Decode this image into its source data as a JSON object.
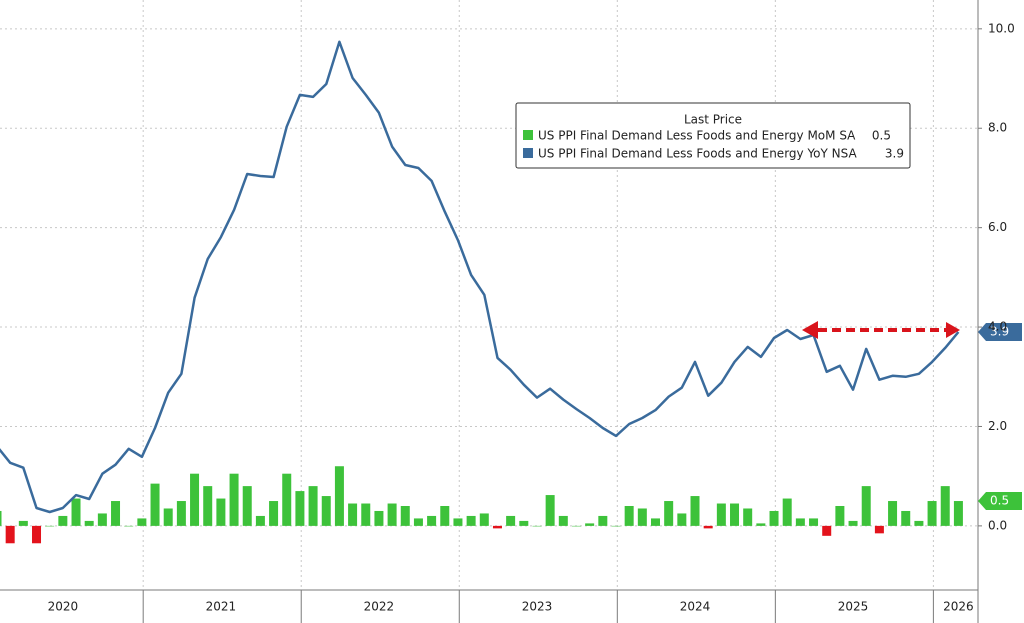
{
  "chart_data": {
    "type": "combo",
    "legend_title": "Last Price",
    "categories": [
      null,
      null,
      null,
      null,
      null,
      "2020",
      null,
      null,
      null,
      null,
      null,
      null,
      null,
      null,
      null,
      null,
      null,
      "2021",
      null,
      null,
      null,
      null,
      null,
      null,
      null,
      null,
      null,
      null,
      null,
      "2022",
      null,
      null,
      null,
      null,
      null,
      null,
      null,
      null,
      null,
      null,
      null,
      "2023",
      null,
      null,
      null,
      null,
      null,
      null,
      null,
      null,
      null,
      null,
      null,
      "2024",
      null,
      null,
      null,
      null,
      null,
      null,
      null,
      null,
      null,
      null,
      null,
      "2025",
      null,
      null,
      null,
      null,
      null,
      null,
      null,
      "2026"
    ],
    "series": [
      {
        "name": "US PPI Final Demand Less Foods and Energy MoM SA",
        "type": "bar",
        "color": "#3dc23a",
        "negative_color": "#e3131c",
        "values": [
          0.3,
          -0.35,
          0.1,
          -0.35,
          0.0,
          0.2,
          0.55,
          0.1,
          0.25,
          0.5,
          0.0,
          0.15,
          0.85,
          0.35,
          0.5,
          1.05,
          0.8,
          0.55,
          1.05,
          0.8,
          0.2,
          0.5,
          1.05,
          0.7,
          0.8,
          0.6,
          1.2,
          0.45,
          0.45,
          0.3,
          0.45,
          0.4,
          0.15,
          0.2,
          0.4,
          0.15,
          0.2,
          0.25,
          -0.05,
          0.2,
          0.1,
          0.0,
          0.62,
          0.2,
          0.0,
          0.05,
          0.2,
          0.0,
          0.4,
          0.35,
          0.15,
          0.5,
          0.25,
          0.6,
          -0.05,
          0.45,
          0.45,
          0.35,
          0.05,
          0.3,
          0.55,
          0.15,
          0.15,
          -0.2,
          0.4,
          0.1,
          0.8,
          -0.15,
          0.5,
          0.3,
          0.1,
          0.5,
          0.8,
          0.5
        ]
      },
      {
        "name": "US PPI Final Demand Less Foods and Energy YoY NSA",
        "type": "line",
        "color": "#3a6b9c",
        "values": [
          1.6,
          1.27,
          1.17,
          0.36,
          0.28,
          0.36,
          0.62,
          0.54,
          1.05,
          1.23,
          1.55,
          1.39,
          1.97,
          2.68,
          3.06,
          4.59,
          5.37,
          5.81,
          6.36,
          7.08,
          7.04,
          7.02,
          8.03,
          8.67,
          8.63,
          8.89,
          9.74,
          9.01,
          8.67,
          8.31,
          7.63,
          7.26,
          7.2,
          6.94,
          6.32,
          5.75,
          5.05,
          4.65,
          3.38,
          3.14,
          2.84,
          2.58,
          2.76,
          2.54,
          2.35,
          2.17,
          1.97,
          1.81,
          2.05,
          2.17,
          2.33,
          2.6,
          2.78,
          3.3,
          2.62,
          2.88,
          3.3,
          3.6,
          3.4,
          3.78,
          3.94,
          3.76,
          3.84,
          3.1,
          3.22,
          2.74,
          3.56,
          2.94,
          3.02,
          3.0,
          3.06,
          3.3,
          3.58,
          3.9
        ]
      }
    ],
    "ylim": [
      -1.29,
      10.58
    ],
    "yticks": [
      {
        "value": 0,
        "label": "0.0"
      },
      {
        "value": 2,
        "label": "2.0"
      },
      {
        "value": 4,
        "label": "4.0"
      },
      {
        "value": 6,
        "label": "6.0"
      },
      {
        "value": 8,
        "label": "8.0"
      },
      {
        "value": 10,
        "label": "10.0"
      }
    ],
    "grid": true
  }
}
